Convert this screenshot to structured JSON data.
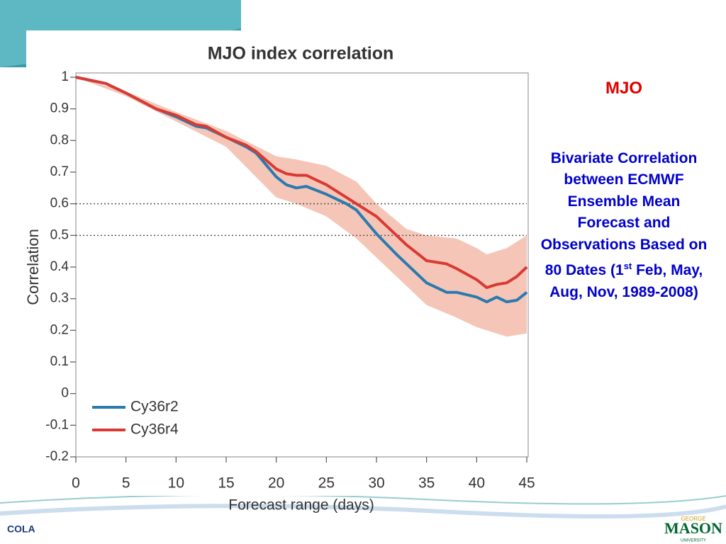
{
  "slide": {
    "heading": "MJO",
    "text_before": "Bivariate Correlation between ECMWF Ensemble Mean Forecast and Observations Based on 80 Dates (1",
    "superscript": "st",
    "text_after": " Feb, May, Aug, Nov, 1989-2008)",
    "logo_left": "COLA",
    "logo_right_top": "GEORGE",
    "logo_right": "MASON",
    "logo_right_bottom": "UNIVERSITY"
  },
  "chart_data": {
    "type": "line",
    "title": "MJO index correlation",
    "x_label": "Forecast range (days)",
    "y_label": "Correlation",
    "x": [
      0,
      3,
      5,
      8,
      10,
      12,
      13,
      15,
      17,
      18,
      20,
      21,
      22,
      23,
      25,
      27,
      28,
      30,
      32,
      33,
      35,
      37,
      38,
      40,
      41,
      42,
      43,
      44,
      45
    ],
    "series": [
      {
        "name": "Cy36r2",
        "color": "#2a7ab0",
        "values": [
          1.0,
          0.98,
          0.95,
          0.9,
          0.875,
          0.845,
          0.84,
          0.81,
          0.78,
          0.76,
          0.685,
          0.66,
          0.65,
          0.655,
          0.63,
          0.6,
          0.58,
          0.505,
          0.44,
          0.41,
          0.35,
          0.32,
          0.32,
          0.305,
          0.29,
          0.305,
          0.29,
          0.295,
          0.32
        ]
      },
      {
        "name": "Cy36r4",
        "color": "#d93a33",
        "values": [
          1.0,
          0.98,
          0.95,
          0.9,
          0.88,
          0.85,
          0.845,
          0.81,
          0.785,
          0.765,
          0.71,
          0.695,
          0.69,
          0.69,
          0.66,
          0.62,
          0.6,
          0.56,
          0.5,
          0.47,
          0.42,
          0.41,
          0.395,
          0.36,
          0.335,
          0.345,
          0.35,
          0.37,
          0.4
        ]
      }
    ],
    "band": {
      "color": "#f2b8a5",
      "x": [
        0,
        5,
        10,
        15,
        20,
        22,
        25,
        28,
        30,
        33,
        35,
        38,
        40,
        41,
        43,
        45
      ],
      "upper": [
        1.0,
        0.955,
        0.89,
        0.83,
        0.75,
        0.74,
        0.72,
        0.67,
        0.6,
        0.52,
        0.5,
        0.49,
        0.46,
        0.44,
        0.46,
        0.5
      ],
      "lower": [
        1.0,
        0.94,
        0.86,
        0.78,
        0.62,
        0.6,
        0.56,
        0.49,
        0.43,
        0.34,
        0.28,
        0.24,
        0.21,
        0.2,
        0.18,
        0.19
      ]
    },
    "reference_lines": [
      0.6,
      0.5
    ],
    "xlim": [
      0,
      45
    ],
    "xticks": [
      0,
      5,
      10,
      15,
      20,
      25,
      30,
      35,
      40,
      45
    ],
    "ylim": [
      -0.2,
      1
    ],
    "yticks": [
      -0.2,
      -0.1,
      0,
      0.1,
      0.2,
      0.3,
      0.4,
      0.5,
      0.6,
      0.7,
      0.8,
      0.9,
      1
    ]
  }
}
